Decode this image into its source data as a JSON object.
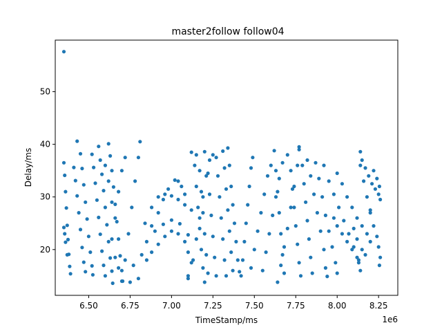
{
  "chart_data": {
    "type": "scatter",
    "title": "master2follow follow04",
    "xlabel": "TimeStamp/ms",
    "ylabel": "Delay/ms",
    "x_offset_label": "1e6",
    "x_scale": 1000000,
    "xlim": [
      6.298,
      8.366
    ],
    "ylim": [
      11.3,
      59.8
    ],
    "x_ticks": [
      6.5,
      6.75,
      7.0,
      7.25,
      7.5,
      7.75,
      8.0,
      8.25
    ],
    "x_tick_labels": [
      "6.50",
      "6.75",
      "7.00",
      "7.25",
      "7.50",
      "7.75",
      "8.00",
      "8.25"
    ],
    "y_ticks": [
      20,
      30,
      40,
      50
    ],
    "y_tick_labels": [
      "20",
      "30",
      "40",
      "50"
    ],
    "grid": false,
    "legend": "none",
    "series_color": "#1f77b4",
    "series": [
      {
        "values": [
          [
            6.35,
            57.6
          ],
          [
            6.35,
            36.5
          ],
          [
            6.355,
            34.1
          ],
          [
            6.36,
            31.0
          ],
          [
            6.365,
            27.9
          ],
          [
            6.37,
            24.6
          ],
          [
            6.375,
            21.9
          ],
          [
            6.38,
            19.1
          ],
          [
            6.385,
            16.8
          ],
          [
            6.39,
            15.4
          ],
          [
            6.35,
            24.2
          ],
          [
            6.355,
            23.0
          ],
          [
            6.36,
            21.4
          ],
          [
            6.37,
            19.0
          ],
          [
            6.41,
            35.6
          ],
          [
            6.42,
            33.1
          ],
          [
            6.43,
            30.2
          ],
          [
            6.44,
            27.0
          ],
          [
            6.45,
            23.8
          ],
          [
            6.46,
            20.4
          ],
          [
            6.47,
            17.6
          ],
          [
            6.48,
            15.8
          ],
          [
            6.43,
            40.6
          ],
          [
            6.45,
            38.2
          ],
          [
            6.46,
            35.4
          ],
          [
            6.47,
            32.3
          ],
          [
            6.48,
            29.0
          ],
          [
            6.49,
            25.8
          ],
          [
            6.5,
            22.5
          ],
          [
            6.51,
            19.5
          ],
          [
            6.52,
            16.9
          ],
          [
            6.525,
            15.2
          ],
          [
            6.52,
            38.1
          ],
          [
            6.53,
            35.6
          ],
          [
            6.54,
            32.6
          ],
          [
            6.55,
            29.4
          ],
          [
            6.56,
            26.1
          ],
          [
            6.57,
            22.9
          ],
          [
            6.58,
            19.7
          ],
          [
            6.59,
            17.0
          ],
          [
            6.6,
            15.0
          ],
          [
            6.56,
            39.6
          ],
          [
            6.57,
            37.0
          ],
          [
            6.58,
            34.3
          ],
          [
            6.59,
            31.2
          ],
          [
            6.6,
            28.0
          ],
          [
            6.61,
            24.7
          ],
          [
            6.62,
            21.5
          ],
          [
            6.63,
            18.4
          ],
          [
            6.64,
            15.9
          ],
          [
            6.645,
            13.6
          ],
          [
            6.62,
            40.1
          ],
          [
            6.63,
            37.8
          ],
          [
            6.64,
            35.0
          ],
          [
            6.65,
            31.9
          ],
          [
            6.66,
            28.6
          ],
          [
            6.67,
            25.3
          ],
          [
            6.68,
            22.0
          ],
          [
            6.69,
            18.8
          ],
          [
            6.7,
            16.0
          ],
          [
            6.705,
            14.0
          ],
          [
            6.6,
            36.0
          ],
          [
            6.62,
            33.0
          ],
          [
            6.64,
            29.0
          ],
          [
            6.66,
            26.0
          ],
          [
            6.68,
            31.0
          ],
          [
            6.7,
            35.0
          ],
          [
            6.72,
            37.5
          ],
          [
            6.64,
            22.0
          ],
          [
            6.66,
            18.5
          ],
          [
            6.68,
            16.5
          ],
          [
            6.7,
            14.0
          ],
          [
            6.72,
            18.0
          ],
          [
            6.74,
            23.0
          ],
          [
            6.76,
            28.0
          ],
          [
            6.78,
            33.0
          ],
          [
            6.8,
            37.5
          ],
          [
            6.81,
            40.5
          ],
          [
            6.75,
            13.8
          ],
          [
            6.77,
            17.0
          ],
          [
            6.8,
            14.5
          ],
          [
            6.82,
            19.0
          ],
          [
            6.85,
            21.5
          ],
          [
            6.88,
            24.5
          ],
          [
            6.92,
            27.0
          ],
          [
            6.95,
            29.5
          ],
          [
            6.98,
            31.5
          ],
          [
            7.02,
            33.2
          ],
          [
            7.04,
            33.0
          ],
          [
            7.06,
            32.0
          ],
          [
            7.08,
            30.5
          ],
          [
            6.84,
            25.0
          ],
          [
            6.88,
            28.0
          ],
          [
            6.92,
            30.0
          ],
          [
            6.96,
            30.5
          ],
          [
            7.0,
            30.2
          ],
          [
            7.04,
            29.5
          ],
          [
            7.08,
            28.5
          ],
          [
            7.12,
            27.5
          ],
          [
            6.85,
            18.0
          ],
          [
            6.88,
            19.5
          ],
          [
            6.92,
            21.0
          ],
          [
            6.96,
            22.5
          ],
          [
            7.0,
            23.5
          ],
          [
            7.04,
            23.0
          ],
          [
            7.08,
            21.5
          ],
          [
            7.1,
            19.5
          ],
          [
            7.12,
            17.5
          ],
          [
            6.9,
            23.5
          ],
          [
            6.95,
            24.8
          ],
          [
            7.0,
            25.6
          ],
          [
            7.05,
            24.9
          ],
          [
            7.1,
            22.8
          ],
          [
            7.1,
            15.0
          ],
          [
            7.1,
            14.5
          ],
          [
            7.12,
            38.5
          ],
          [
            7.14,
            36.0
          ],
          [
            7.15,
            32.0
          ],
          [
            7.16,
            28.0
          ],
          [
            7.17,
            24.0
          ],
          [
            7.18,
            20.0
          ],
          [
            7.19,
            16.5
          ],
          [
            7.2,
            13.8
          ],
          [
            7.15,
            38.0
          ],
          [
            7.17,
            35.0
          ],
          [
            7.18,
            31.0
          ],
          [
            7.19,
            27.0
          ],
          [
            7.2,
            23.0
          ],
          [
            7.21,
            19.0
          ],
          [
            7.22,
            15.5
          ],
          [
            7.2,
            38.6
          ],
          [
            7.22,
            34.5
          ],
          [
            7.23,
            30.5
          ],
          [
            7.24,
            26.5
          ],
          [
            7.25,
            22.5
          ],
          [
            7.26,
            18.5
          ],
          [
            7.27,
            15.0
          ],
          [
            7.13,
            18.0
          ],
          [
            7.15,
            22.0
          ],
          [
            7.17,
            26.0
          ],
          [
            7.19,
            30.0
          ],
          [
            7.21,
            34.0
          ],
          [
            7.23,
            37.0
          ],
          [
            7.25,
            38.0
          ],
          [
            7.27,
            37.5
          ],
          [
            7.28,
            34.0
          ],
          [
            7.29,
            30.0
          ],
          [
            7.3,
            26.0
          ],
          [
            7.31,
            22.0
          ],
          [
            7.32,
            18.0
          ],
          [
            7.33,
            15.0
          ],
          [
            7.31,
            38.7
          ],
          [
            7.32,
            35.5
          ],
          [
            7.33,
            31.5
          ],
          [
            7.34,
            27.5
          ],
          [
            7.35,
            23.5
          ],
          [
            7.36,
            19.5
          ],
          [
            7.37,
            16.0
          ],
          [
            7.34,
            39.3
          ],
          [
            7.35,
            36.0
          ],
          [
            7.36,
            32.0
          ],
          [
            7.37,
            28.5
          ],
          [
            7.38,
            25.0
          ],
          [
            7.39,
            21.5
          ],
          [
            7.4,
            18.0
          ],
          [
            7.41,
            15.8
          ],
          [
            7.42,
            15.0
          ],
          [
            7.43,
            18.0
          ],
          [
            7.44,
            21.5
          ],
          [
            7.45,
            25.0
          ],
          [
            7.46,
            28.5
          ],
          [
            7.47,
            32.0
          ],
          [
            7.48,
            35.5
          ],
          [
            7.49,
            37.5
          ],
          [
            7.48,
            16.5
          ],
          [
            7.5,
            20.0
          ],
          [
            7.52,
            23.5
          ],
          [
            7.54,
            27.0
          ],
          [
            7.56,
            30.5
          ],
          [
            7.58,
            34.0
          ],
          [
            7.6,
            36.0
          ],
          [
            7.55,
            16.0
          ],
          [
            7.57,
            19.5
          ],
          [
            7.59,
            23.0
          ],
          [
            7.61,
            26.5
          ],
          [
            7.63,
            30.0
          ],
          [
            7.65,
            33.5
          ],
          [
            7.67,
            36.5
          ],
          [
            7.62,
            38.8
          ],
          [
            7.63,
            35.0
          ],
          [
            7.64,
            31.0
          ],
          [
            7.65,
            27.0
          ],
          [
            7.66,
            23.0
          ],
          [
            7.67,
            19.0
          ],
          [
            7.68,
            15.5
          ],
          [
            7.64,
            13.8
          ],
          [
            7.66,
            17.0
          ],
          [
            7.68,
            20.5
          ],
          [
            7.7,
            24.0
          ],
          [
            7.72,
            28.0
          ],
          [
            7.74,
            32.0
          ],
          [
            7.76,
            36.0
          ],
          [
            7.77,
            39.5
          ],
          [
            7.7,
            38.0
          ],
          [
            7.72,
            35.0
          ],
          [
            7.73,
            31.5
          ],
          [
            7.74,
            28.0
          ],
          [
            7.75,
            24.5
          ],
          [
            7.76,
            21.0
          ],
          [
            7.77,
            17.5
          ],
          [
            7.78,
            15.0
          ],
          [
            7.77,
            39.0
          ],
          [
            7.79,
            36.0
          ],
          [
            7.8,
            32.5
          ],
          [
            7.81,
            29.0
          ],
          [
            7.82,
            25.5
          ],
          [
            7.83,
            22.0
          ],
          [
            7.84,
            18.5
          ],
          [
            7.85,
            15.5
          ],
          [
            7.82,
            37.0
          ],
          [
            7.84,
            34.0
          ],
          [
            7.86,
            30.5
          ],
          [
            7.88,
            27.0
          ],
          [
            7.9,
            23.5
          ],
          [
            7.92,
            20.0
          ],
          [
            7.93,
            16.5
          ],
          [
            7.94,
            14.9
          ],
          [
            7.87,
            36.5
          ],
          [
            7.89,
            33.5
          ],
          [
            7.91,
            30.0
          ],
          [
            7.93,
            26.5
          ],
          [
            7.95,
            23.5
          ],
          [
            7.97,
            20.5
          ],
          [
            7.99,
            17.5
          ],
          [
            8.0,
            15.5
          ],
          [
            7.92,
            36.0
          ],
          [
            7.95,
            33.0
          ],
          [
            7.98,
            30.5
          ],
          [
            8.01,
            28.0
          ],
          [
            8.04,
            25.5
          ],
          [
            8.07,
            23.0
          ],
          [
            8.1,
            20.5
          ],
          [
            8.13,
            18.0
          ],
          [
            8.14,
            16.0
          ],
          [
            8.0,
            34.5
          ],
          [
            8.03,
            32.5
          ],
          [
            8.06,
            30.0
          ],
          [
            8.09,
            28.0
          ],
          [
            8.12,
            26.0
          ],
          [
            8.15,
            24.5
          ],
          [
            8.18,
            23.0
          ],
          [
            8.2,
            21.5
          ],
          [
            7.98,
            26.0
          ],
          [
            8.0,
            24.5
          ],
          [
            8.03,
            23.0
          ],
          [
            8.06,
            21.5
          ],
          [
            8.09,
            20.0
          ],
          [
            8.12,
            18.5
          ],
          [
            8.13,
            17.5
          ],
          [
            8.14,
            38.6
          ],
          [
            8.15,
            37.0
          ],
          [
            8.17,
            35.5
          ],
          [
            8.19,
            34.0
          ],
          [
            8.21,
            32.5
          ],
          [
            8.23,
            31.5
          ],
          [
            8.25,
            30.5
          ],
          [
            8.26,
            29.5
          ],
          [
            8.14,
            36.0
          ],
          [
            8.16,
            33.0
          ],
          [
            8.18,
            30.0
          ],
          [
            8.2,
            27.0
          ],
          [
            8.22,
            24.5
          ],
          [
            8.24,
            22.5
          ],
          [
            8.25,
            20.5
          ],
          [
            8.26,
            18.5
          ],
          [
            8.255,
            17.0
          ],
          [
            8.1,
            24.0
          ],
          [
            8.12,
            22.0
          ],
          [
            8.15,
            20.0
          ],
          [
            8.17,
            19.0
          ],
          [
            8.2,
            27.5
          ],
          [
            8.22,
            35.0
          ],
          [
            8.24,
            33.5
          ],
          [
            8.255,
            32.0
          ]
        ]
      }
    ]
  }
}
